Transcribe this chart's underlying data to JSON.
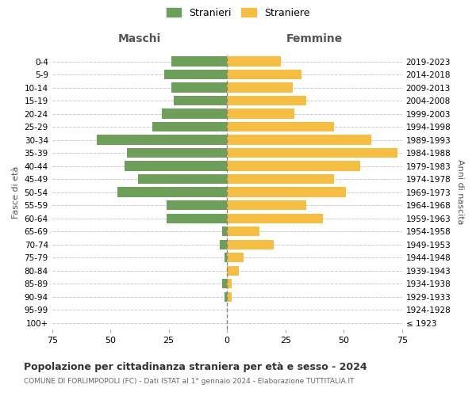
{
  "age_groups": [
    "100+",
    "95-99",
    "90-94",
    "85-89",
    "80-84",
    "75-79",
    "70-74",
    "65-69",
    "60-64",
    "55-59",
    "50-54",
    "45-49",
    "40-44",
    "35-39",
    "30-34",
    "25-29",
    "20-24",
    "15-19",
    "10-14",
    "5-9",
    "0-4"
  ],
  "birth_years": [
    "≤ 1923",
    "1924-1928",
    "1929-1933",
    "1934-1938",
    "1939-1943",
    "1944-1948",
    "1949-1953",
    "1954-1958",
    "1959-1963",
    "1964-1968",
    "1969-1973",
    "1974-1978",
    "1979-1983",
    "1984-1988",
    "1989-1993",
    "1994-1998",
    "1999-2003",
    "2004-2008",
    "2009-2013",
    "2014-2018",
    "2019-2023"
  ],
  "maschi": [
    0,
    0,
    1,
    2,
    0,
    1,
    3,
    2,
    26,
    26,
    47,
    38,
    44,
    43,
    56,
    32,
    28,
    23,
    24,
    27,
    24
  ],
  "femmine": [
    0,
    0,
    2,
    2,
    5,
    7,
    20,
    14,
    41,
    34,
    51,
    46,
    57,
    73,
    62,
    46,
    29,
    34,
    28,
    32,
    23
  ],
  "maschi_color": "#6d9e5a",
  "femmine_color": "#f5be41",
  "background_color": "#ffffff",
  "grid_color": "#cccccc",
  "title": "Popolazione per cittadinanza straniera per età e sesso - 2024",
  "subtitle": "COMUNE DI FORLIMPOPOLI (FC) - Dati ISTAT al 1° gennaio 2024 - Elaborazione TUTTITALIA.IT",
  "xlabel_left": "Maschi",
  "xlabel_right": "Femmine",
  "ylabel_left": "Fasce di età",
  "ylabel_right": "Anni di nascita",
  "legend_maschi": "Stranieri",
  "legend_femmine": "Straniere",
  "xlim": 75
}
